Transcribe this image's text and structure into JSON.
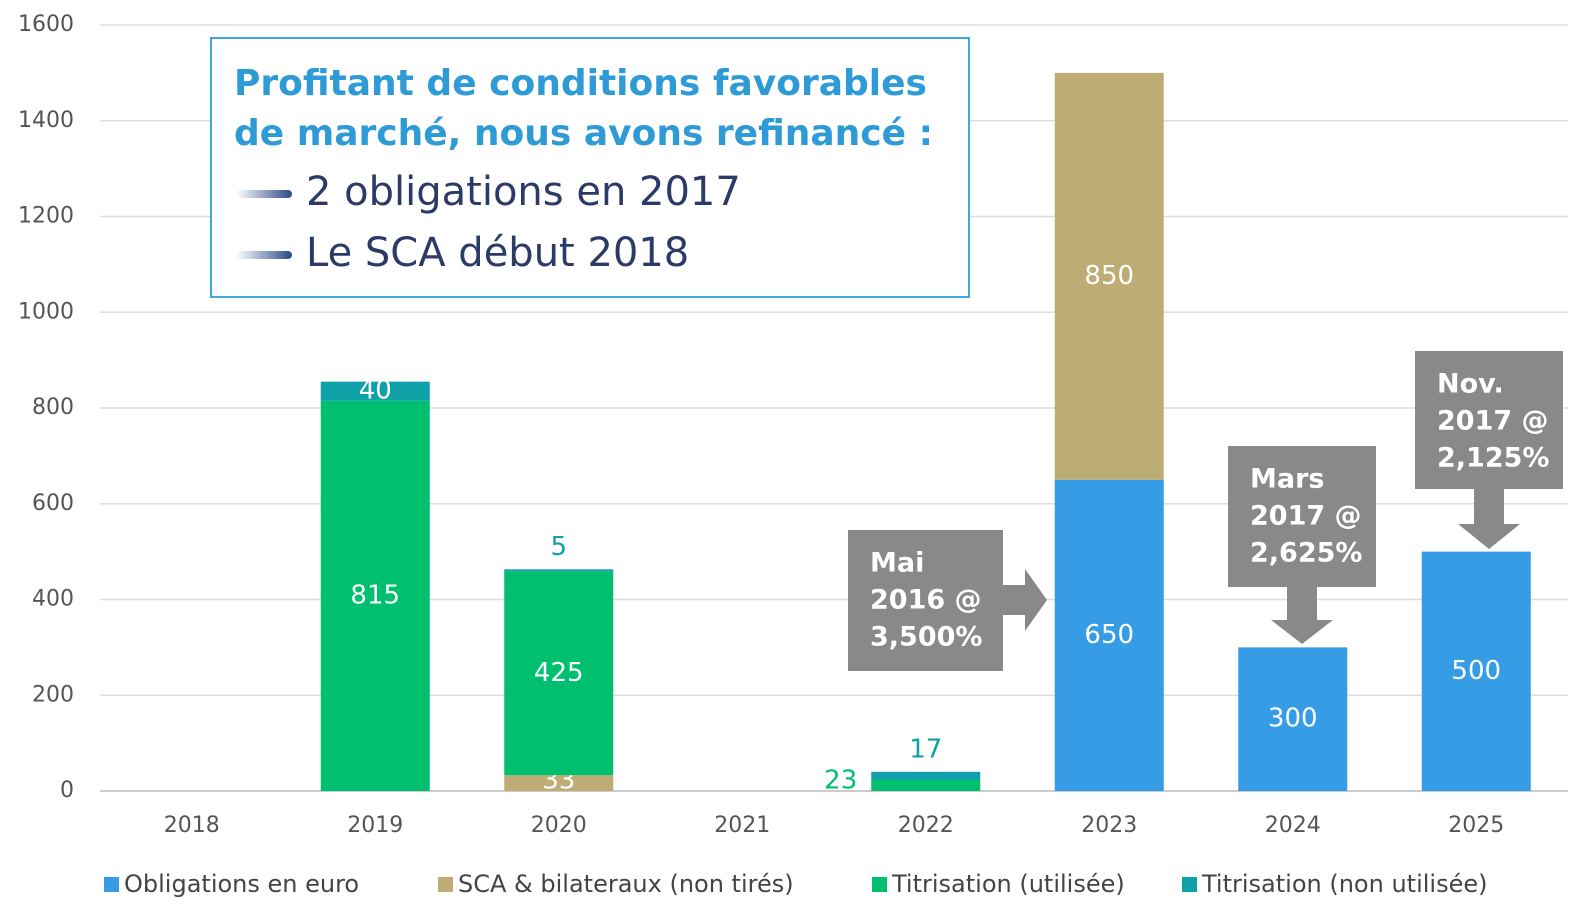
{
  "chart_data": {
    "type": "stacked_bar",
    "categories": [
      "2018",
      "2019",
      "2020",
      "2021",
      "2022",
      "2023",
      "2024",
      "2025"
    ],
    "series": [
      {
        "name": "Obligations en euro",
        "color": "#379ce6",
        "values": [
          null,
          null,
          null,
          null,
          null,
          650,
          300,
          500
        ]
      },
      {
        "name": "SCA & bilateraux (non tirés)",
        "color": "#bdad75",
        "values": [
          null,
          null,
          33,
          null,
          null,
          850,
          null,
          null
        ]
      },
      {
        "name": "Titrisation (utilisée)",
        "color": "#00bf6f",
        "values": [
          null,
          815,
          425,
          null,
          23,
          null,
          null,
          null
        ]
      },
      {
        "name": "Titrisation (non utilisée)",
        "color": "#0fa0a8",
        "values": [
          null,
          40,
          5,
          null,
          17,
          null,
          null,
          null
        ]
      }
    ],
    "ylim": [
      0,
      1600
    ],
    "yticks": [
      0,
      200,
      400,
      600,
      800,
      1000,
      1200,
      1400,
      1600
    ],
    "grid": true,
    "legend": "bottom",
    "textbox": {
      "title": [
        "Profitant de conditions favorables",
        "de marché, nous avons refinancé :"
      ],
      "bullets": [
        "2 obligations en 2017",
        "Le SCA début 2018"
      ]
    },
    "callouts": [
      {
        "lines": [
          "Mai",
          "2016 @",
          "3,500%"
        ]
      },
      {
        "lines": [
          "Mars",
          "2017 @",
          "2,625%"
        ]
      },
      {
        "lines": [
          "Nov.",
          "2017 @",
          "2,125%"
        ]
      }
    ]
  }
}
